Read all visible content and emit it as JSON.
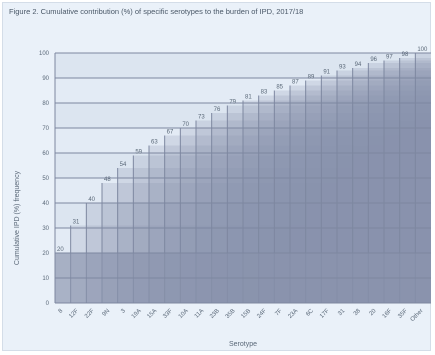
{
  "chart_data": {
    "type": "bar",
    "title": "Figure 2. Cumulative contribution (%) of specific serotypes to the burden of IPD, 2017/18",
    "xlabel": "Serotype",
    "ylabel": "Cumulative IPD (%) frequency",
    "ylim": [
      0,
      100
    ],
    "yticks": [
      0,
      10,
      20,
      30,
      40,
      50,
      60,
      70,
      80,
      90,
      100
    ],
    "grid": true,
    "categories": [
      "8",
      "12F",
      "22F",
      "9N",
      "3",
      "19A",
      "15A",
      "33F",
      "10A",
      "11A",
      "23B",
      "35B",
      "15B",
      "24F",
      "7F",
      "23A",
      "6C",
      "17F",
      "31",
      "38",
      "20",
      "16F",
      "35F",
      "Other"
    ],
    "values": [
      20,
      31,
      40,
      48,
      54,
      59,
      63,
      67,
      70,
      73,
      76,
      79,
      81,
      83,
      85,
      87,
      89,
      91,
      93,
      94,
      96,
      97,
      98,
      100
    ],
    "colors": {
      "background": "#eaf1f9",
      "bar_base": "#8a93ad",
      "bar_light": "#bcc6dc",
      "grid": "#7d87a0"
    }
  }
}
